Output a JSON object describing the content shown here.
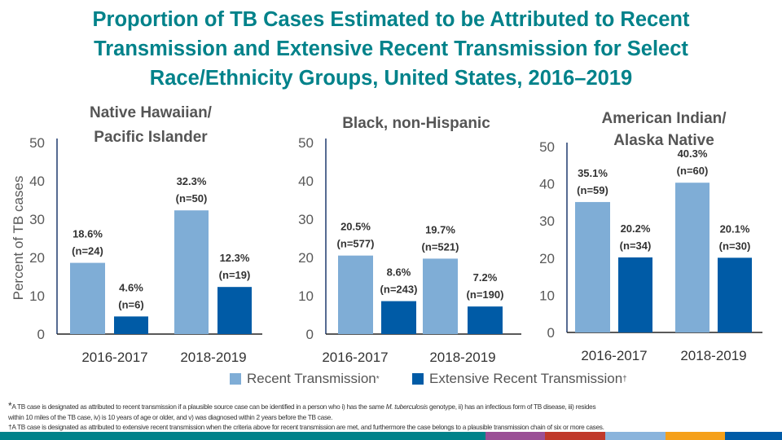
{
  "title": [
    "Proportion of TB Cases Estimated to be Attributed to Recent",
    "Transmission and Extensive Recent Transmission for Select",
    "Race/Ethnicity Groups, United States, 2016–2019"
  ],
  "colors": {
    "recent": "#7fadd6",
    "extensive": "#005ba6",
    "title": "#00828a"
  },
  "chart_data": {
    "type": "bar",
    "ylabel": "Percent of TB cases",
    "ylim": [
      0,
      50
    ],
    "yticks": [
      "0",
      "10",
      "20",
      "30",
      "40",
      "50"
    ],
    "categories": [
      "2016-2017",
      "2018-2019"
    ],
    "legend": {
      "recent": "Recent Transmission",
      "recent_mark": "*",
      "extensive": "Extensive Recent Transmission",
      "extensive_mark": "†",
      "placement": "bottom"
    },
    "panels": [
      {
        "title": [
          "Native Hawaiian/",
          "Pacific Islander"
        ],
        "series": [
          {
            "name": "Recent Transmission",
            "values": [
              18.6,
              32.3
            ],
            "labels": [
              "18.6%",
              "32.3%"
            ],
            "n": [
              "(n=24)",
              "(n=50)"
            ]
          },
          {
            "name": "Extensive Recent Transmission",
            "values": [
              4.6,
              12.3
            ],
            "labels": [
              "4.6%",
              "12.3%"
            ],
            "n": [
              "(n=6)",
              "(n=19)"
            ]
          }
        ]
      },
      {
        "title": [
          "Black, non-Hispanic"
        ],
        "series": [
          {
            "name": "Recent Transmission",
            "values": [
              20.5,
              19.7
            ],
            "labels": [
              "20.5%",
              "19.7%"
            ],
            "n": [
              "(n=577)",
              "(n=521)"
            ]
          },
          {
            "name": "Extensive Recent Transmission",
            "values": [
              8.6,
              7.2
            ],
            "labels": [
              "8.6%",
              "7.2%"
            ],
            "n": [
              "(n=243)",
              "(n=190)"
            ]
          }
        ]
      },
      {
        "title": [
          "American Indian/",
          "Alaska Native"
        ],
        "series": [
          {
            "name": "Recent Transmission",
            "values": [
              35.1,
              40.3
            ],
            "labels": [
              "35.1%",
              "40.3%"
            ],
            "n": [
              "(n=59)",
              "(n=60)"
            ]
          },
          {
            "name": "Extensive Recent Transmission",
            "values": [
              20.2,
              20.1
            ],
            "labels": [
              "20.2%",
              "20.1%"
            ],
            "n": [
              "(n=34)",
              "(n=30)"
            ]
          }
        ]
      }
    ]
  },
  "footnotes": {
    "f1_mark": "*",
    "f1a": "A TB case is designated as attributed to recent transmission if a plausible source case can be identified in a person who i) has the same ",
    "f1_italic": "M. tuberculosis",
    "f1b": " genotype, ii) has an infectious form of TB disease, iii) resides",
    "f1c": "within 10 miles of the TB case, iv) is 10 years of age or older, and v) was diagnosed within 2 years before the TB case.",
    "f2": "†A TB case is designated as attributed to extensive recent transmission when the criteria above for recent transmission are met, and furthermore the case belongs to a plausible transmission chain of six or more cases."
  },
  "footer_colors": [
    "#00828a",
    "#9b4f96",
    "#c0392b",
    "#8ab4dc",
    "#f5a01a",
    "#005ba6"
  ]
}
